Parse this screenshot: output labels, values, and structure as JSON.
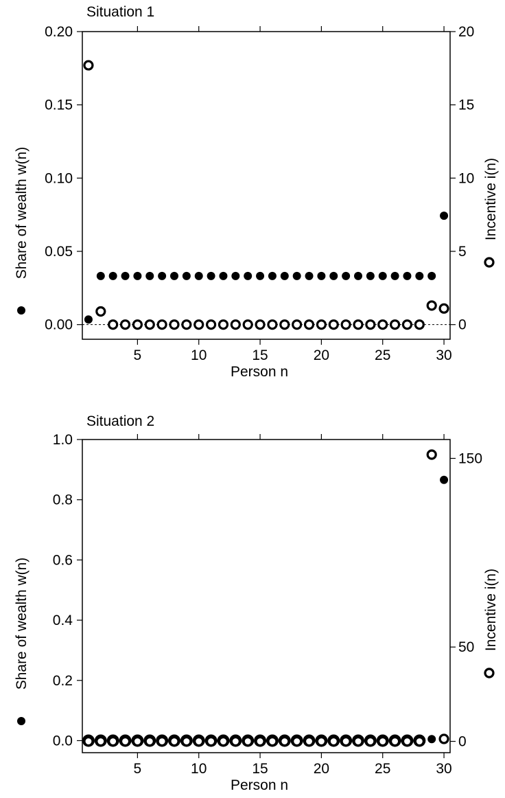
{
  "chart_data": [
    {
      "type": "scatter",
      "title": "Situation 1",
      "xlabel": "Person n",
      "ylabel": "Share of wealth w(n)",
      "y2label": "Incentive i(n)",
      "xlim": [
        0.5,
        30.5
      ],
      "ylim": [
        -0.01,
        0.2
      ],
      "y2lim": [
        -1,
        20
      ],
      "xticks": [
        5,
        10,
        15,
        20,
        25,
        30
      ],
      "yticks": [
        "0.00",
        "0.05",
        "0.10",
        "0.15",
        "0.20"
      ],
      "y2ticks": [
        "0",
        "5",
        "10",
        "15",
        "20"
      ],
      "zero_line": true,
      "series": [
        {
          "marker": "filled-circle",
          "axis": "left",
          "x": [
            1,
            2,
            3,
            4,
            5,
            6,
            7,
            8,
            9,
            10,
            11,
            12,
            13,
            14,
            15,
            16,
            17,
            18,
            19,
            20,
            21,
            22,
            23,
            24,
            25,
            26,
            27,
            28,
            29,
            30
          ],
          "values": [
            0.0035,
            0.0332,
            0.0332,
            0.0332,
            0.0332,
            0.0332,
            0.0332,
            0.0332,
            0.0332,
            0.0332,
            0.0332,
            0.0332,
            0.0332,
            0.0332,
            0.0332,
            0.0332,
            0.0332,
            0.0332,
            0.0332,
            0.0332,
            0.0332,
            0.0332,
            0.0332,
            0.0332,
            0.0332,
            0.0332,
            0.0332,
            0.0332,
            0.0332,
            0.0743
          ]
        },
        {
          "marker": "open-circle",
          "axis": "right",
          "x": [
            1,
            2,
            3,
            4,
            5,
            6,
            7,
            8,
            9,
            10,
            11,
            12,
            13,
            14,
            15,
            16,
            17,
            18,
            19,
            20,
            21,
            22,
            23,
            24,
            25,
            26,
            27,
            28,
            29,
            30
          ],
          "values": [
            17.7,
            0.9,
            0,
            0,
            0,
            0,
            0,
            0,
            0,
            0,
            0,
            0,
            0,
            0,
            0,
            0,
            0,
            0,
            0,
            0,
            0,
            0,
            0,
            0,
            0,
            0,
            0,
            0,
            1.3,
            1.1
          ]
        }
      ]
    },
    {
      "type": "scatter",
      "title": "Situation 2",
      "xlabel": "Person n",
      "ylabel": "Share of wealth w(n)",
      "y2label": "Incentive i(n)",
      "xlim": [
        0.5,
        30.5
      ],
      "ylim": [
        -0.04,
        1.0
      ],
      "y2lim": [
        -6,
        160
      ],
      "xticks": [
        5,
        10,
        15,
        20,
        25,
        30
      ],
      "yticks": [
        "0.0",
        "0.2",
        "0.4",
        "0.6",
        "0.8",
        "1.0"
      ],
      "y2ticks": [
        "0",
        "50",
        "150"
      ],
      "zero_line": false,
      "series": [
        {
          "marker": "filled-circle",
          "axis": "left",
          "x": [
            1,
            2,
            3,
            4,
            5,
            6,
            7,
            8,
            9,
            10,
            11,
            12,
            13,
            14,
            15,
            16,
            17,
            18,
            19,
            20,
            21,
            22,
            23,
            24,
            25,
            26,
            27,
            28,
            29,
            30
          ],
          "values": [
            0,
            0,
            0,
            0,
            0,
            0,
            0,
            0,
            0,
            0,
            0,
            0,
            0,
            0,
            0,
            0,
            0,
            0,
            0,
            0,
            0,
            0,
            0,
            0,
            0,
            0,
            0,
            0,
            0.005,
            0.866
          ]
        },
        {
          "marker": "open-circle",
          "axis": "right",
          "x": [
            1,
            2,
            3,
            4,
            5,
            6,
            7,
            8,
            9,
            10,
            11,
            12,
            13,
            14,
            15,
            16,
            17,
            18,
            19,
            20,
            21,
            22,
            23,
            24,
            25,
            26,
            27,
            28,
            29,
            30
          ],
          "values": [
            0,
            0,
            0,
            0,
            0,
            0,
            0,
            0,
            0,
            0,
            0,
            0,
            0,
            0,
            0,
            0,
            0,
            0,
            0,
            0,
            0,
            0,
            0,
            0,
            0,
            0,
            0,
            0,
            152,
            1.3
          ]
        }
      ]
    }
  ]
}
